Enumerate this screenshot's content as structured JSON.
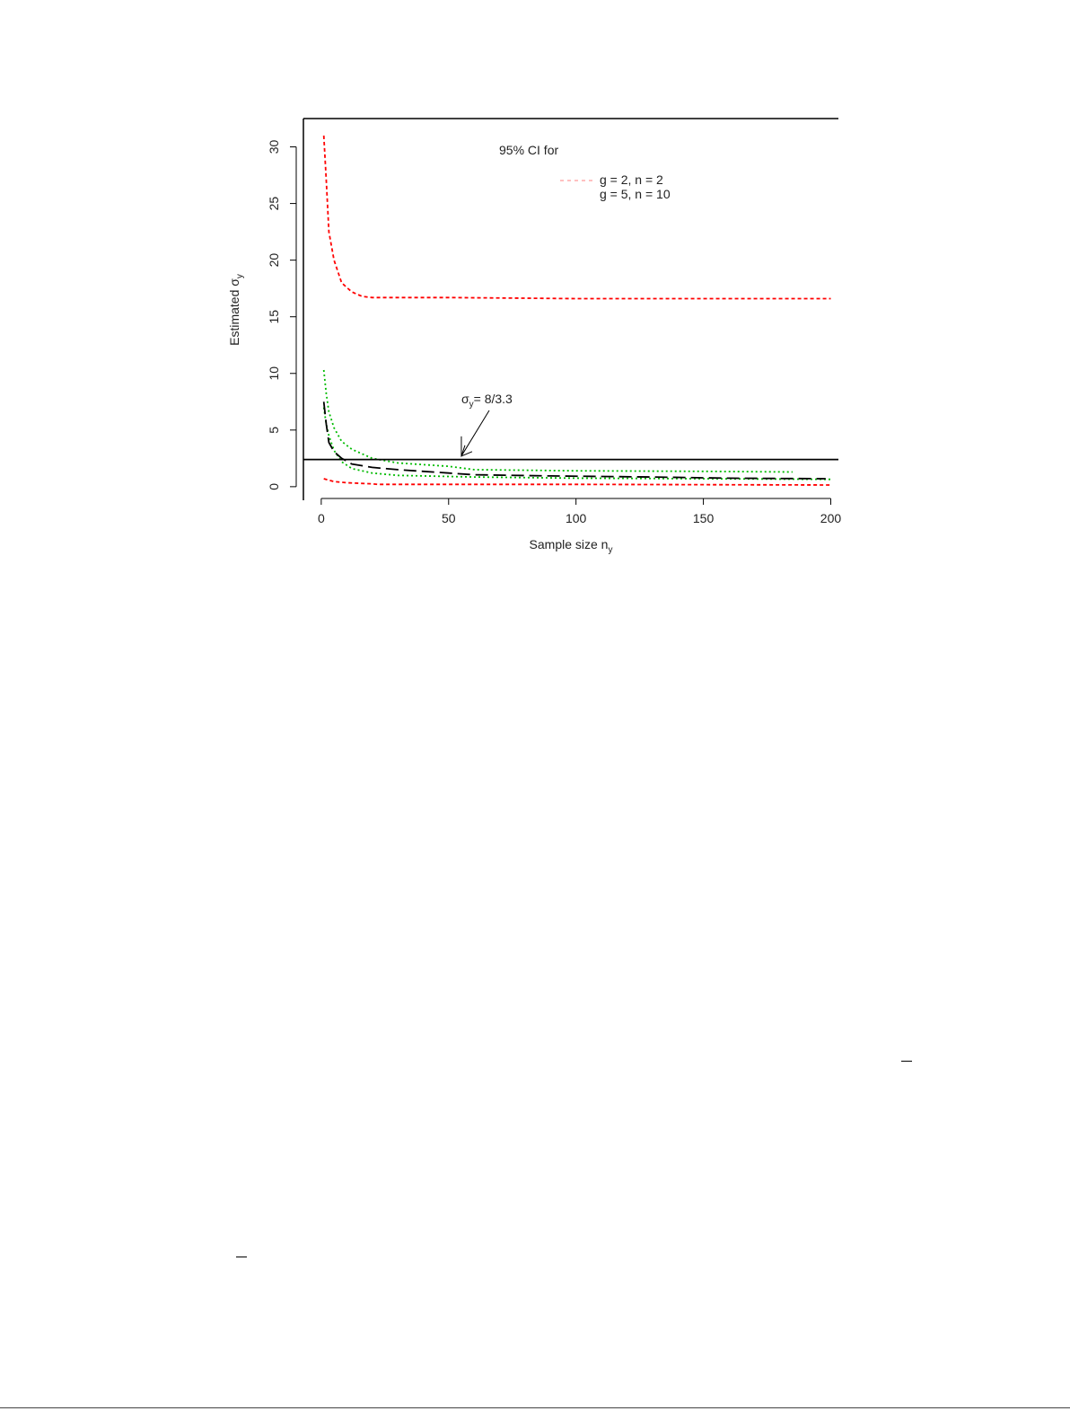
{
  "chart_data": {
    "type": "line",
    "title": "",
    "xlabel": "Sample size n",
    "xlabel_sub": "y",
    "ylabel": "Estimated σ",
    "ylabel_sub": "y",
    "xlim": [
      -7,
      203
    ],
    "ylim": [
      -1.2,
      32.5
    ],
    "xticks": [
      0,
      50,
      100,
      150,
      200
    ],
    "yticks": [
      0,
      5,
      10,
      15,
      20,
      25,
      30
    ],
    "grid": false,
    "legend": {
      "title": "95% CI for",
      "placement": "top-right",
      "entries": [
        {
          "label": "g = 2, n = 2",
          "color": "#ff9a9a",
          "dash": "4 4"
        },
        {
          "label": "g = 5, n = 10",
          "color": "#ffffff",
          "dash": ""
        }
      ]
    },
    "reference_line": {
      "y": 2.4,
      "color": "#000000"
    },
    "annotation": {
      "text": "σ",
      "sub": "y",
      "rest": "= 8/3.3",
      "arrow_to": [
        55,
        2.7
      ]
    },
    "series": [
      {
        "name": "g = 2, n = 2",
        "role": "upper",
        "color": "#ff0000",
        "x": [
          1,
          2,
          3,
          5,
          8,
          12,
          16,
          20,
          30,
          50,
          100,
          200
        ],
        "y": [
          31,
          27,
          22.5,
          20,
          18,
          17.2,
          16.8,
          16.7,
          16.7,
          16.7,
          16.6,
          16.6
        ]
      },
      {
        "name": "g = 2, n = 2",
        "role": "lower",
        "color": "#ff0000",
        "x": [
          1,
          5,
          10,
          20,
          22,
          60,
          100,
          200
        ],
        "y": [
          0.7,
          0.45,
          0.35,
          0.25,
          0.2,
          0.2,
          0.2,
          0.15
        ]
      },
      {
        "name": "g = 5, n = 10",
        "role": "upper",
        "color": "#00bb00",
        "x": [
          1,
          2,
          3,
          5,
          8,
          12,
          20,
          30,
          50,
          60,
          100,
          150,
          185
        ],
        "y": [
          10.3,
          8.2,
          6.6,
          5.2,
          4.0,
          3.3,
          2.5,
          2.1,
          1.8,
          1.5,
          1.4,
          1.35,
          1.3
        ]
      },
      {
        "name": "g = 5, n = 10",
        "role": "lower",
        "color": "#00bb00",
        "x": [
          1,
          2,
          3,
          5,
          8,
          12,
          20,
          30,
          50,
          60,
          100,
          150,
          200
        ],
        "y": [
          7.0,
          5.5,
          4.5,
          3.2,
          2.2,
          1.6,
          1.2,
          1.0,
          0.9,
          0.85,
          0.75,
          0.7,
          0.65
        ]
      },
      {
        "name": "",
        "role": "estimate",
        "color": "#000000",
        "x": [
          1,
          2,
          3,
          5,
          8,
          12,
          20,
          30,
          40,
          50,
          60,
          90,
          130,
          160,
          198
        ],
        "y": [
          7.5,
          5.5,
          3.9,
          3.1,
          2.5,
          2.0,
          1.7,
          1.5,
          1.35,
          1.2,
          1.05,
          0.95,
          0.85,
          0.75,
          0.7
        ]
      }
    ]
  },
  "page_marks": {
    "mark_a": "‾",
    "mark_b": "‾"
  }
}
